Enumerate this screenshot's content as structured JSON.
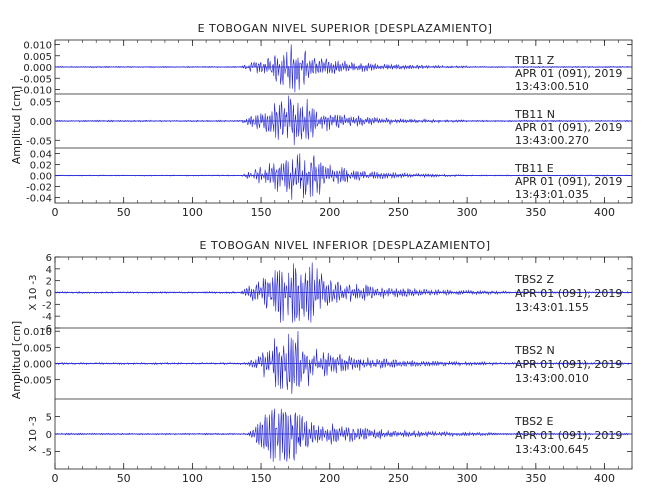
{
  "colors": {
    "trace": "#1f1fd6",
    "axis": "#222222",
    "zero": "#2a2ad8"
  },
  "chart_data": [
    {
      "type": "line",
      "title": "E TOBOGAN NIVEL SUPERIOR [DESPLAZAMIENTO]",
      "ylabel": "Amplitud [cm]",
      "xlim": [
        0,
        420
      ],
      "xticks": [
        "0",
        "50",
        "100",
        "150",
        "200",
        "250",
        "300",
        "350",
        "400"
      ],
      "panels": [
        {
          "station": "TB11",
          "component": "Z",
          "date": "APR 01 (091), 2019",
          "time": "13:43:00.510",
          "ylim": [
            -0.012,
            0.012
          ],
          "yticks": [
            "0.010",
            "0.005",
            "0.000",
            "-0.005",
            "-0.010"
          ],
          "tick_values": [
            0.01,
            0.005,
            0,
            -0.005,
            -0.01
          ],
          "envelope": {
            "onset": 135,
            "peak_start": 160,
            "peak_end": 185,
            "decay_end": 300,
            "peak_amplitude": 0.011,
            "noise": 0.0003
          }
        },
        {
          "station": "TB11",
          "component": "N",
          "date": "APR 01 (091), 2019",
          "time": "13:43:00.270",
          "ylim": [
            -0.07,
            0.07
          ],
          "yticks": [
            "0.05",
            "0.00",
            "-0.05"
          ],
          "tick_values": [
            0.05,
            0,
            -0.05
          ],
          "envelope": {
            "onset": 135,
            "peak_start": 158,
            "peak_end": 188,
            "decay_end": 300,
            "peak_amplitude": 0.065,
            "noise": 0.002
          }
        },
        {
          "station": "TB11",
          "component": "E",
          "date": "APR 01 (091), 2019",
          "time": "13:43:01.035",
          "ylim": [
            -0.05,
            0.05
          ],
          "yticks": [
            "0.04",
            "0.02",
            "0.00",
            "-0.02",
            "-0.04"
          ],
          "tick_values": [
            0.04,
            0.02,
            0,
            -0.02,
            -0.04
          ],
          "envelope": {
            "onset": 135,
            "peak_start": 160,
            "peak_end": 195,
            "decay_end": 300,
            "peak_amplitude": 0.045,
            "noise": 0.001
          }
        }
      ]
    },
    {
      "type": "line",
      "title": "E TOBOGAN NIVEL INFERIOR [DESPLAZAMIENTO]",
      "ylabel": "Amplitud [cm]",
      "xlim": [
        0,
        420
      ],
      "xticks": [
        "0",
        "50",
        "100",
        "150",
        "200",
        "250",
        "300",
        "350",
        "400"
      ],
      "panels": [
        {
          "station": "TBS2",
          "component": "Z",
          "date": "APR 01 (091), 2019",
          "time": "13:43:01.155",
          "scale_label": "X 10 -3",
          "ylim": [
            -6,
            6
          ],
          "yticks": [
            "6",
            "4",
            "2",
            "0",
            "-2",
            "-4",
            "-6"
          ],
          "tick_values": [
            6,
            4,
            2,
            0,
            -2,
            -4,
            -6
          ],
          "envelope": {
            "onset": 135,
            "peak_start": 155,
            "peak_end": 195,
            "decay_end": 330,
            "peak_amplitude": 5.5,
            "noise": 0.15
          }
        },
        {
          "station": "TBS2",
          "component": "N",
          "date": "APR 01 (091), 2019",
          "time": "13:43:00.010",
          "ylim": [
            -0.011,
            0.011
          ],
          "yticks": [
            "0.010",
            "0.005",
            "0.000",
            "-0.005"
          ],
          "tick_values": [
            0.01,
            0.005,
            0,
            -0.005
          ],
          "envelope": {
            "onset": 140,
            "peak_start": 158,
            "peak_end": 185,
            "decay_end": 320,
            "peak_amplitude": 0.01,
            "noise": 0.0003
          }
        },
        {
          "station": "TBS2",
          "component": "E",
          "date": "APR 01 (091), 2019",
          "time": "13:43:00.645",
          "scale_label": "X 10 -3",
          "ylim": [
            -10,
            10
          ],
          "yticks": [
            "5",
            "0",
            "-5"
          ],
          "tick_values": [
            5,
            0,
            -5
          ],
          "envelope": {
            "onset": 140,
            "peak_start": 152,
            "peak_end": 180,
            "decay_end": 320,
            "peak_amplitude": 9.5,
            "noise": 0.25
          }
        }
      ]
    }
  ]
}
